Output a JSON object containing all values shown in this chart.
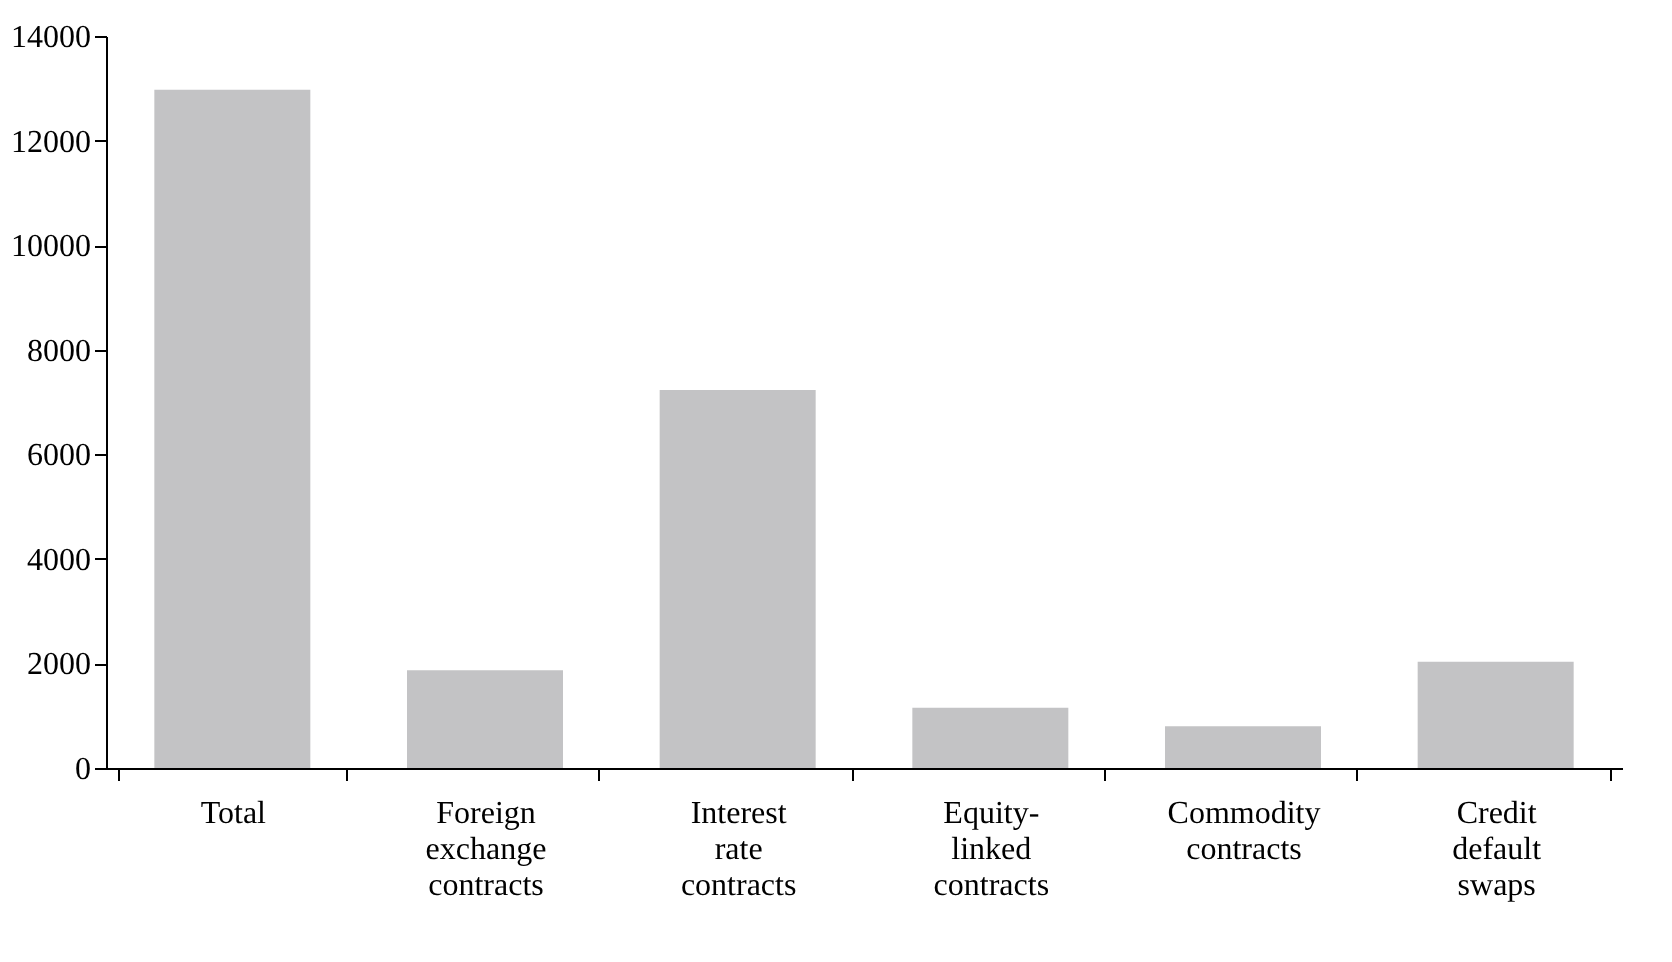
{
  "chart_data": {
    "type": "bar",
    "categories": [
      "Total",
      "Foreign exchange contracts",
      "Interest rate contracts",
      "Equity-linked contracts",
      "Commodity contracts",
      "Credit default swaps"
    ],
    "values": [
      12970,
      1870,
      7230,
      1150,
      800,
      2030
    ],
    "color": "#c3c3c5",
    "ylim": [
      0,
      14000
    ],
    "yticks": [
      0,
      2000,
      4000,
      6000,
      8000,
      10000,
      12000,
      14000
    ],
    "grid": false
  }
}
